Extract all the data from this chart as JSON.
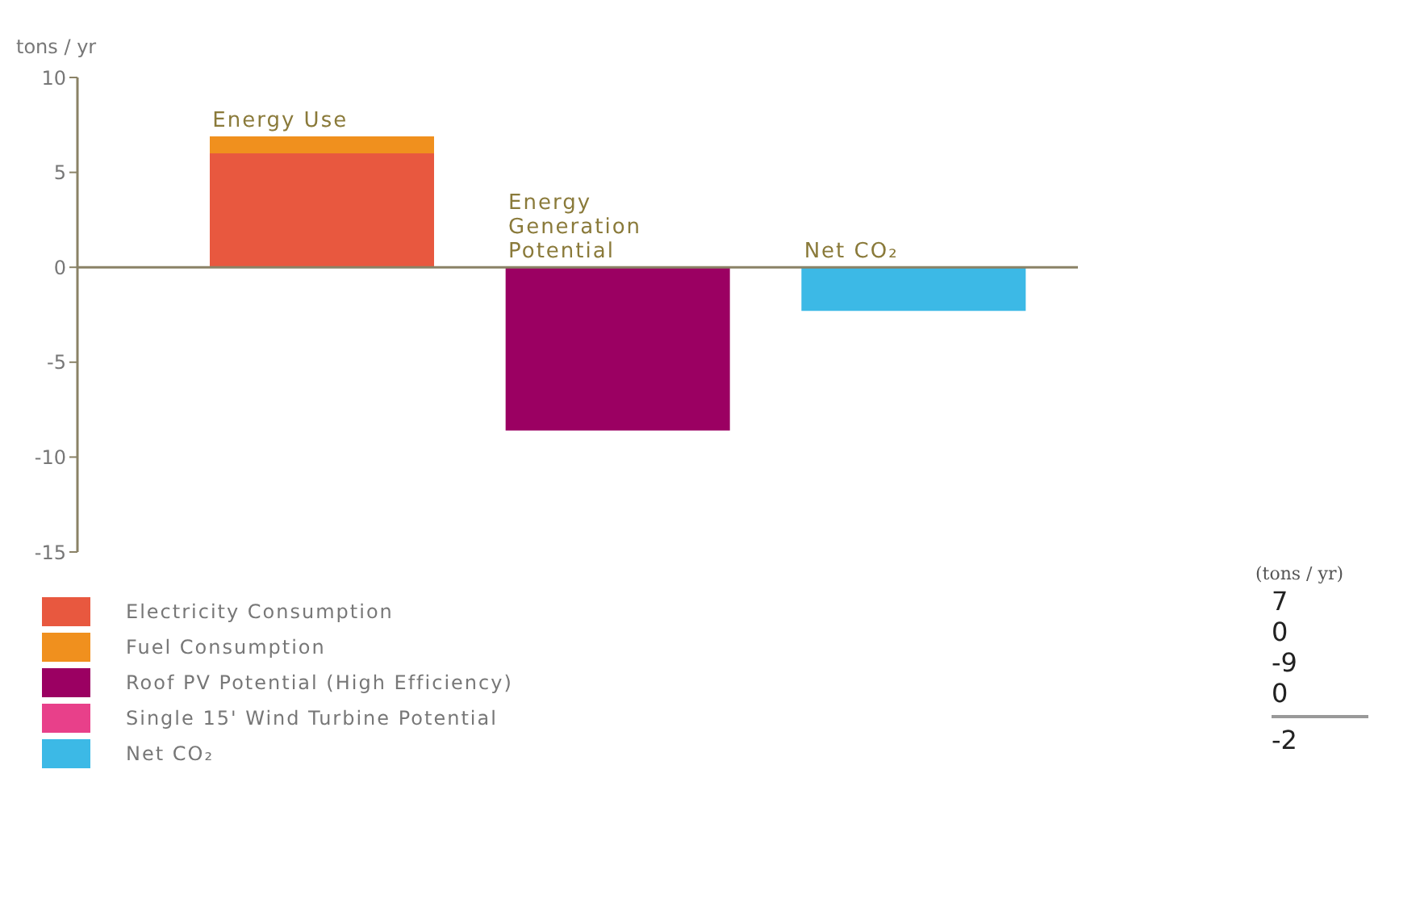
{
  "chart_data": {
    "type": "bar",
    "stacked": true,
    "ylabel": "tons / yr",
    "categories": [
      "Energy Use",
      "Energy Generation Potential",
      "Net CO₂"
    ],
    "series": [
      {
        "name": "Electricity Consumption",
        "color": "#e8583f",
        "values": [
          6,
          null,
          null
        ]
      },
      {
        "name": "Fuel Consumption",
        "color": "#f0901e",
        "values": [
          0.9,
          null,
          null
        ]
      },
      {
        "name": "Roof PV Potential (High Efficiency)",
        "color": "#9b0062",
        "values": [
          null,
          -8.6,
          null
        ]
      },
      {
        "name": "Single 15' Wind Turbine Potential",
        "color": "#e8408a",
        "values": [
          null,
          0,
          null
        ]
      },
      {
        "name": "Net CO₂",
        "color": "#3cb9e6",
        "values": [
          null,
          null,
          -2.3
        ]
      }
    ],
    "ylim": [
      -15,
      10
    ],
    "yticks": [
      -15,
      -10,
      -5,
      0,
      5,
      10
    ],
    "legend": "bottom left",
    "annotations": [
      "(tons / yr)",
      "7",
      "0",
      "-9",
      "0",
      "-2"
    ]
  }
}
